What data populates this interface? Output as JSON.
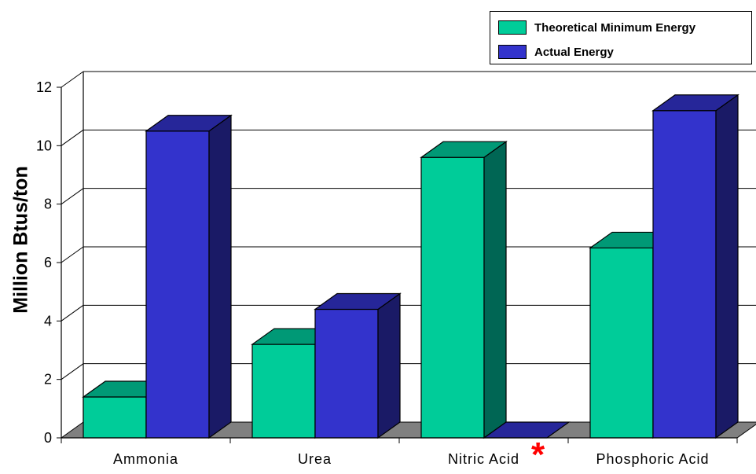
{
  "chart_data": {
    "type": "bar",
    "style": "3d-clustered-column",
    "categories": [
      "Ammonia",
      "Urea",
      "Nitric Acid",
      "Phosphoric Acid"
    ],
    "series": [
      {
        "name": "Theoretical Minimum Energy",
        "values": [
          1.4,
          3.2,
          9.6,
          6.5
        ],
        "color_front": "#00cc99",
        "color_side": "#006654",
        "color_top": "#009976"
      },
      {
        "name": "Actual Energy",
        "values": [
          10.5,
          4.4,
          0,
          11.2
        ],
        "color_front": "#3333cc",
        "color_side": "#1a1a66",
        "color_top": "#262699"
      }
    ],
    "ylabel": "Million Btus/ton",
    "xlabel": "",
    "ylim": [
      0,
      12
    ],
    "yticks": [
      0,
      2,
      4,
      6,
      8,
      10,
      12
    ],
    "grid": true,
    "legend": "top-right",
    "floor_color": "#808080",
    "annotation": {
      "category": "Nitric Acid",
      "text": "*",
      "color": "#ff0000"
    }
  }
}
